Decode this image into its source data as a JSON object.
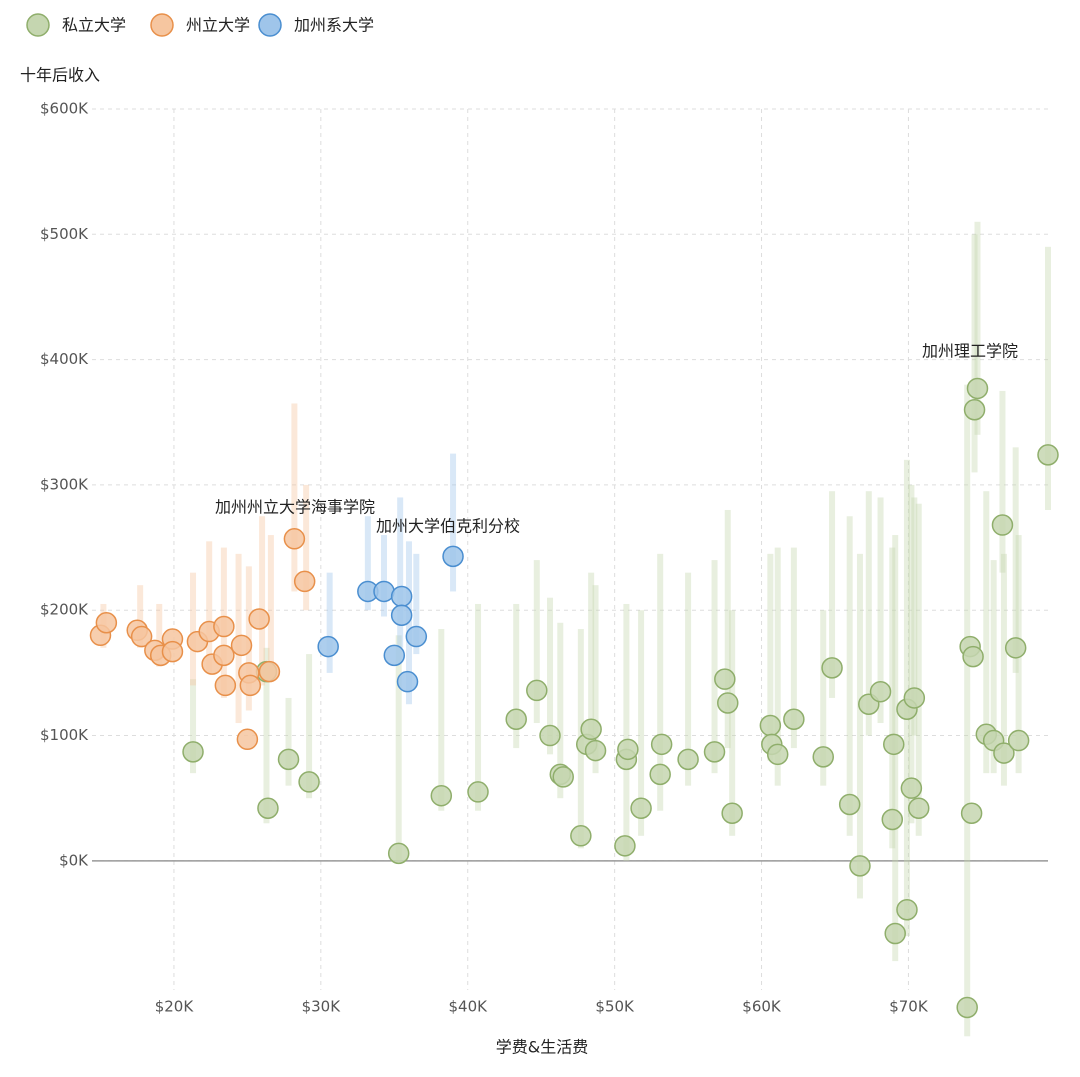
{
  "chart_data": {
    "type": "scatter",
    "x_label": "学费&生活费",
    "y_label": "十年后收入",
    "xlim": [
      14150,
      79500
    ],
    "ylim": [
      -127000,
      600000
    ],
    "xticks": [
      {
        "value": 20000,
        "label": "$20K"
      },
      {
        "value": 30000,
        "label": "$30K"
      },
      {
        "value": 40000,
        "label": "$40K"
      },
      {
        "value": 50000,
        "label": "$50K"
      },
      {
        "value": 60000,
        "label": "$60K"
      },
      {
        "value": 70000,
        "label": "$70K"
      }
    ],
    "yticks": [
      {
        "value": 0,
        "label": "$0K"
      },
      {
        "value": 100000,
        "label": "$100K"
      },
      {
        "value": 200000,
        "label": "$200K"
      },
      {
        "value": 300000,
        "label": "$300K"
      },
      {
        "value": 400000,
        "label": "$400K"
      },
      {
        "value": 500000,
        "label": "$500K"
      },
      {
        "value": 600000,
        "label": "$600K"
      }
    ],
    "grid": true,
    "annotations": [
      "加州理工学院",
      "加州州立大学海事学院",
      "加州大学伯克利分校"
    ],
    "series": [
      {
        "name": "私立大学",
        "color": "#c5d6b0",
        "edge": "#8fae6b",
        "x": [
          21300,
          26300,
          26400,
          27800,
          29200,
          35300,
          38200,
          40700,
          43300,
          44700,
          45600,
          46300,
          46500,
          47700,
          48100,
          48400,
          48700,
          50700,
          50800,
          50900,
          51800,
          53100,
          53200,
          55000,
          56800,
          57500,
          57700,
          58000,
          60600,
          60700,
          61100,
          62200,
          64200,
          64800,
          66000,
          66700,
          67300,
          68100,
          68900,
          69000,
          69100,
          69900,
          69900,
          70200,
          70400,
          70700,
          74000,
          74200,
          74300,
          74400,
          74500,
          74700,
          75300,
          75800,
          76400,
          76500,
          77300,
          77500,
          79500
        ],
        "values": [
          87000,
          151000,
          42000,
          81000,
          63000,
          6000,
          52000,
          55000,
          113000,
          136000,
          100000,
          69000,
          67000,
          20000,
          93000,
          105000,
          88000,
          12000,
          81000,
          89000,
          42000,
          69000,
          93000,
          81000,
          87000,
          145000,
          126000,
          38000,
          108000,
          93000,
          85000,
          113000,
          83000,
          154000,
          45000,
          -4000,
          125000,
          135000,
          33000,
          93000,
          -58000,
          -39000,
          121000,
          58000,
          130000,
          42000,
          -117000,
          171000,
          38000,
          163000,
          360000,
          377000,
          101000,
          96000,
          268000,
          86000,
          170000,
          96000,
          324000
        ],
        "bars": {
          "x": [
            21300,
            26300,
            27800,
            29200,
            35300,
            38200,
            40700,
            43300,
            44700,
            45600,
            46300,
            47700,
            48400,
            48700,
            50800,
            51800,
            53100,
            55000,
            56800,
            57700,
            58000,
            60600,
            61100,
            62200,
            64200,
            64800,
            66000,
            66700,
            67300,
            68100,
            68900,
            69100,
            69900,
            70200,
            70400,
            70700,
            74000,
            74500,
            74700,
            75300,
            75800,
            76400,
            76500,
            77300,
            77500,
            79500
          ],
          "low": [
            70000,
            30000,
            60000,
            50000,
            0,
            40000,
            40000,
            90000,
            110000,
            85000,
            50000,
            10000,
            85000,
            70000,
            0,
            20000,
            40000,
            60000,
            70000,
            90000,
            20000,
            80000,
            60000,
            90000,
            60000,
            130000,
            20000,
            -30000,
            100000,
            110000,
            10000,
            -80000,
            -60000,
            30000,
            100000,
            20000,
            -140000,
            310000,
            340000,
            70000,
            70000,
            230000,
            60000,
            150000,
            70000,
            280000
          ],
          "high": [
            145000,
            170000,
            130000,
            165000,
            180000,
            185000,
            205000,
            205000,
            240000,
            210000,
            190000,
            185000,
            230000,
            220000,
            205000,
            200000,
            245000,
            230000,
            240000,
            280000,
            200000,
            245000,
            250000,
            250000,
            200000,
            295000,
            275000,
            245000,
            295000,
            290000,
            250000,
            260000,
            320000,
            300000,
            290000,
            285000,
            380000,
            500000,
            510000,
            295000,
            240000,
            375000,
            245000,
            330000,
            260000,
            490000
          ]
        }
      },
      {
        "name": "州立大学",
        "color": "#f6c6a0",
        "edge": "#e8904a",
        "x": [
          15000,
          15400,
          17500,
          17800,
          18700,
          19100,
          19900,
          19900,
          21600,
          22400,
          22600,
          23400,
          23400,
          23500,
          24600,
          25000,
          25100,
          25200,
          25800,
          26500,
          28200,
          28900
        ],
        "values": [
          180000,
          190000,
          184000,
          179000,
          168000,
          164000,
          177000,
          167000,
          175000,
          183000,
          157000,
          187000,
          164000,
          140000,
          172000,
          97000,
          150000,
          140000,
          193000,
          151000,
          257000,
          223000
        ],
        "bars": {
          "x": [
            15200,
            17700,
            19000,
            21300,
            22400,
            23400,
            24400,
            25100,
            26000,
            26600,
            28200,
            29000
          ],
          "low": [
            170000,
            170000,
            155000,
            140000,
            150000,
            130000,
            110000,
            120000,
            140000,
            145000,
            215000,
            200000
          ],
          "high": [
            205000,
            220000,
            205000,
            230000,
            255000,
            250000,
            245000,
            235000,
            275000,
            260000,
            365000,
            300000
          ]
        }
      },
      {
        "name": "加州系大学",
        "color": "#9fc5ea",
        "edge": "#4a8ed0",
        "x": [
          30500,
          33200,
          34300,
          35500,
          35500,
          35000,
          35900,
          36500,
          39000
        ],
        "values": [
          171000,
          215000,
          215000,
          211000,
          196000,
          164000,
          143000,
          179000,
          243000
        ],
        "bars": {
          "x": [
            30600,
            33200,
            34300,
            35400,
            36000,
            36500,
            39000
          ],
          "low": [
            150000,
            200000,
            195000,
            170000,
            125000,
            165000,
            215000
          ],
          "high": [
            230000,
            275000,
            260000,
            290000,
            255000,
            245000,
            325000
          ]
        }
      }
    ]
  }
}
